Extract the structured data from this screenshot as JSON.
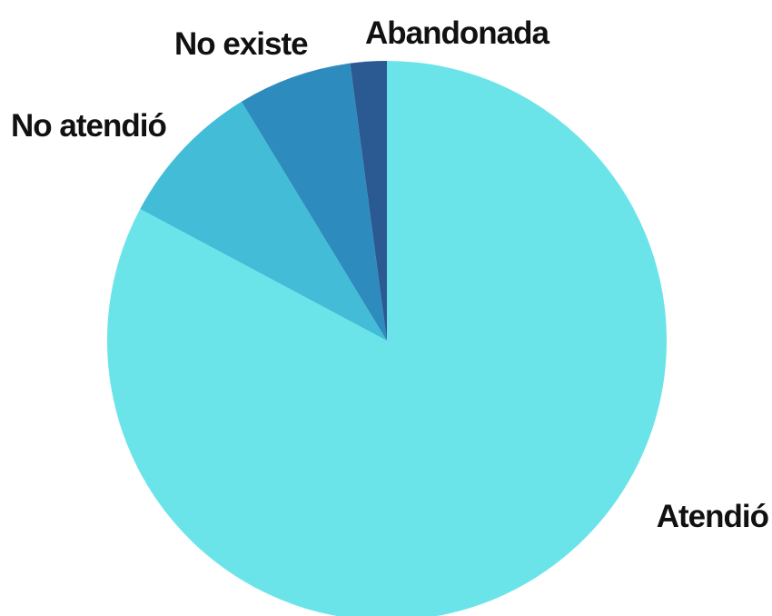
{
  "chart_data": {
    "type": "pie",
    "title": "",
    "start_angle": "12 o'clock",
    "direction": "clockwise",
    "slices": [
      {
        "label": "Atendió",
        "value": 82.8,
        "color": "#6be4e9"
      },
      {
        "label": "No atendió",
        "value": 8.5,
        "color": "#43bcd7"
      },
      {
        "label": "No existe",
        "value": 6.6,
        "color": "#2d8cbd"
      },
      {
        "label": "Abandonada",
        "value": 2.1,
        "color": "#2b5a93"
      }
    ]
  }
}
